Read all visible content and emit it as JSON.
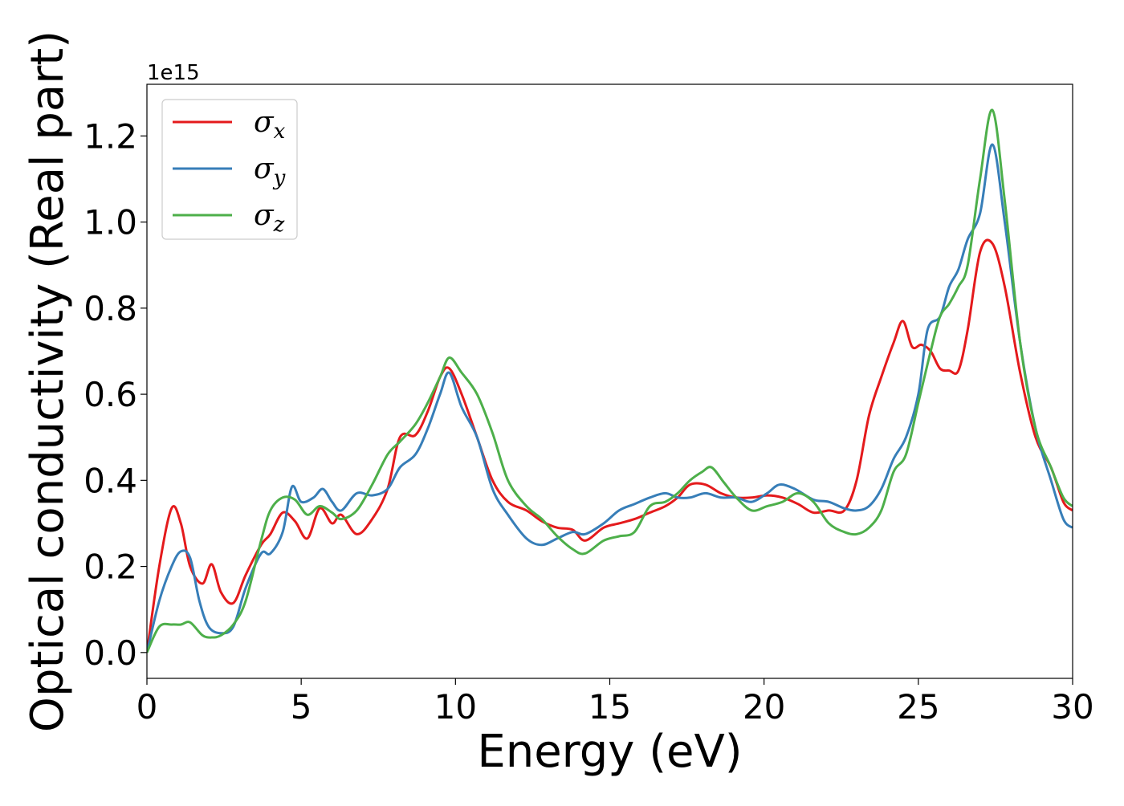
{
  "chart_data": {
    "type": "line",
    "xlabel": "Energy (eV)",
    "ylabel": "Optical conductivity (Real part)",
    "y_offset_text": "1e15",
    "xlim": [
      0,
      30
    ],
    "ylim": [
      -0.06,
      1.32
    ],
    "xticks": [
      0,
      5,
      10,
      15,
      20,
      25,
      30
    ],
    "xtick_labels": [
      "0",
      "5",
      "10",
      "15",
      "20",
      "25",
      "30"
    ],
    "yticks": [
      0.0,
      0.2,
      0.4,
      0.6,
      0.8,
      1.0,
      1.2
    ],
    "ytick_labels": [
      "0.0",
      "0.2",
      "0.4",
      "0.6",
      "0.8",
      "1.0",
      "1.2"
    ],
    "grid": false,
    "legend_position": "upper-left",
    "series": [
      {
        "name": "σx",
        "symbol": "σ",
        "subscript": "x",
        "color": "#e41a1c",
        "x": [
          0,
          0.4,
          0.8,
          1.1,
          1.4,
          1.8,
          2.1,
          2.4,
          2.8,
          3.2,
          3.7,
          4.0,
          4.4,
          4.8,
          5.2,
          5.6,
          6.0,
          6.3,
          6.8,
          7.3,
          7.8,
          8.2,
          8.7,
          9.1,
          9.5,
          9.8,
          10.2,
          10.7,
          11.2,
          11.7,
          12.3,
          12.8,
          13.3,
          13.8,
          14.2,
          14.8,
          15.3,
          15.8,
          16.3,
          16.8,
          17.2,
          17.6,
          18.1,
          18.6,
          19.1,
          19.6,
          20.1,
          20.6,
          21.1,
          21.6,
          22.1,
          22.6,
          23.0,
          23.4,
          23.8,
          24.2,
          24.5,
          24.8,
          25.1,
          25.4,
          25.7,
          26.0,
          26.3,
          26.6,
          27.0,
          27.4,
          27.8,
          28.3,
          28.8,
          29.3,
          29.7,
          30.0
        ],
        "y": [
          0.0,
          0.2,
          0.335,
          0.3,
          0.2,
          0.16,
          0.205,
          0.14,
          0.115,
          0.18,
          0.25,
          0.275,
          0.325,
          0.305,
          0.265,
          0.335,
          0.3,
          0.32,
          0.275,
          0.31,
          0.38,
          0.5,
          0.505,
          0.56,
          0.64,
          0.66,
          0.6,
          0.5,
          0.4,
          0.35,
          0.33,
          0.305,
          0.29,
          0.285,
          0.26,
          0.29,
          0.3,
          0.31,
          0.325,
          0.34,
          0.36,
          0.39,
          0.39,
          0.37,
          0.36,
          0.36,
          0.365,
          0.36,
          0.345,
          0.325,
          0.33,
          0.33,
          0.4,
          0.55,
          0.64,
          0.72,
          0.77,
          0.71,
          0.715,
          0.7,
          0.66,
          0.655,
          0.655,
          0.75,
          0.93,
          0.95,
          0.85,
          0.65,
          0.5,
          0.43,
          0.35,
          0.33
        ]
      },
      {
        "name": "σy",
        "symbol": "σ",
        "subscript": "y",
        "color": "#377eb8",
        "x": [
          0,
          0.4,
          0.8,
          1.1,
          1.4,
          1.7,
          2.0,
          2.4,
          2.8,
          3.2,
          3.7,
          4.0,
          4.4,
          4.7,
          5.0,
          5.4,
          5.7,
          6.0,
          6.3,
          6.8,
          7.3,
          7.8,
          8.2,
          8.7,
          9.1,
          9.5,
          9.8,
          10.2,
          10.7,
          11.2,
          11.7,
          12.3,
          12.8,
          13.3,
          13.8,
          14.2,
          14.8,
          15.3,
          15.8,
          16.3,
          16.8,
          17.2,
          17.6,
          18.1,
          18.6,
          19.1,
          19.6,
          20.1,
          20.5,
          21.0,
          21.6,
          22.1,
          22.6,
          23.0,
          23.4,
          23.8,
          24.2,
          24.6,
          25.0,
          25.3,
          25.7,
          26.0,
          26.3,
          26.6,
          27.0,
          27.4,
          27.8,
          28.3,
          28.8,
          29.3,
          29.7,
          30.0
        ],
        "y": [
          0.0,
          0.12,
          0.2,
          0.235,
          0.22,
          0.12,
          0.06,
          0.045,
          0.06,
          0.15,
          0.23,
          0.23,
          0.28,
          0.385,
          0.35,
          0.36,
          0.38,
          0.35,
          0.33,
          0.37,
          0.365,
          0.38,
          0.43,
          0.46,
          0.52,
          0.6,
          0.65,
          0.57,
          0.5,
          0.38,
          0.32,
          0.265,
          0.25,
          0.265,
          0.28,
          0.275,
          0.3,
          0.33,
          0.345,
          0.36,
          0.37,
          0.36,
          0.36,
          0.37,
          0.36,
          0.36,
          0.35,
          0.37,
          0.39,
          0.38,
          0.355,
          0.35,
          0.335,
          0.33,
          0.34,
          0.38,
          0.45,
          0.5,
          0.6,
          0.75,
          0.78,
          0.85,
          0.89,
          0.96,
          1.02,
          1.18,
          1.0,
          0.72,
          0.52,
          0.4,
          0.31,
          0.29
        ]
      },
      {
        "name": "σz",
        "symbol": "σ",
        "subscript": "z",
        "color": "#4daf4a",
        "x": [
          0,
          0.4,
          0.8,
          1.1,
          1.4,
          1.8,
          2.1,
          2.4,
          2.8,
          3.2,
          3.7,
          4.0,
          4.4,
          4.8,
          5.2,
          5.6,
          6.0,
          6.3,
          6.8,
          7.3,
          7.8,
          8.2,
          8.7,
          9.1,
          9.5,
          9.8,
          10.2,
          10.7,
          11.2,
          11.7,
          12.3,
          12.8,
          13.3,
          13.8,
          14.2,
          14.8,
          15.3,
          15.8,
          16.3,
          16.8,
          17.2,
          17.6,
          18.0,
          18.3,
          18.7,
          19.1,
          19.6,
          20.1,
          20.6,
          21.1,
          21.6,
          22.1,
          22.6,
          23.0,
          23.4,
          23.8,
          24.2,
          24.6,
          25.0,
          25.4,
          25.7,
          26.0,
          26.3,
          26.6,
          27.0,
          27.4,
          27.8,
          28.3,
          28.8,
          29.3,
          29.7,
          30.0
        ],
        "y": [
          0.0,
          0.06,
          0.065,
          0.065,
          0.07,
          0.04,
          0.035,
          0.04,
          0.065,
          0.12,
          0.26,
          0.33,
          0.36,
          0.355,
          0.32,
          0.34,
          0.325,
          0.31,
          0.33,
          0.39,
          0.46,
          0.49,
          0.53,
          0.58,
          0.64,
          0.685,
          0.65,
          0.6,
          0.51,
          0.4,
          0.34,
          0.31,
          0.27,
          0.24,
          0.23,
          0.26,
          0.27,
          0.28,
          0.34,
          0.35,
          0.37,
          0.4,
          0.42,
          0.43,
          0.395,
          0.36,
          0.33,
          0.34,
          0.35,
          0.37,
          0.35,
          0.3,
          0.28,
          0.275,
          0.29,
          0.33,
          0.42,
          0.46,
          0.58,
          0.7,
          0.78,
          0.81,
          0.85,
          0.9,
          1.1,
          1.26,
          1.05,
          0.72,
          0.52,
          0.43,
          0.36,
          0.34
        ]
      }
    ]
  }
}
